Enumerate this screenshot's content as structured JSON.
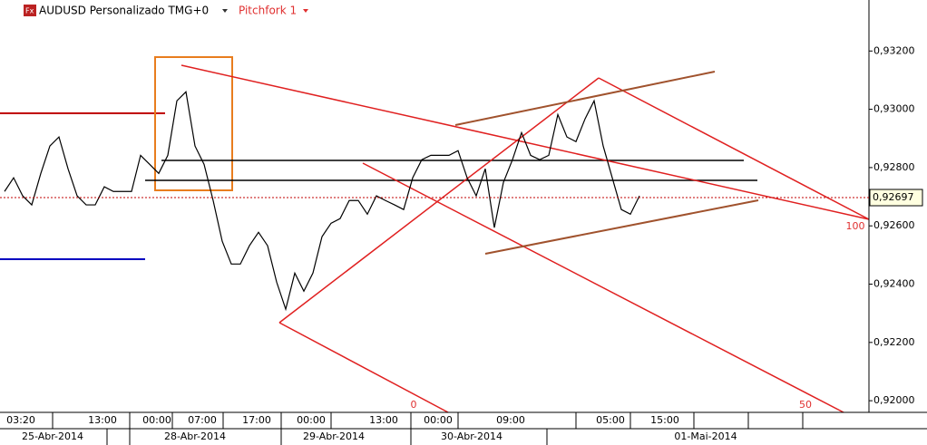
{
  "header": {
    "symbol": "AUDUSD Personalizado TMG+0",
    "tool": "Pitchfork 1"
  },
  "chart_data": {
    "type": "line",
    "categories": [
      "03:20",
      null,
      null,
      null,
      null,
      null,
      null,
      null,
      null,
      "13:00",
      null,
      null,
      null,
      null,
      null,
      "00:00",
      null,
      null,
      null,
      null,
      "07:00",
      null,
      null,
      null,
      null,
      null,
      "17:00",
      null,
      null,
      null,
      null,
      null,
      "00:00",
      null,
      null,
      null,
      null,
      null,
      null,
      null,
      "13:00",
      null,
      null,
      null,
      null,
      null,
      "00:00",
      null,
      null,
      null,
      null,
      null,
      null,
      null,
      "09:00",
      null,
      null,
      null,
      null,
      null,
      null,
      null,
      null,
      null,
      null,
      "05:00",
      null,
      null,
      null,
      null,
      null,
      "15:00"
    ],
    "date_labels": [
      "25-Abr-2014",
      "28-Abr-2014",
      "29-Abr-2014",
      "30-Abr-2014",
      "01-Mai-2014"
    ],
    "series": [
      {
        "name": "AUDUSD",
        "color": "#000000",
        "values": [
          0.92718,
          0.92765,
          0.92703,
          0.92672,
          0.9278,
          0.92874,
          0.92905,
          0.92796,
          0.92703,
          0.92672,
          0.92672,
          0.92734,
          0.92718,
          0.92718,
          0.92718,
          0.92842,
          0.92811,
          0.9278,
          0.92842,
          0.93029,
          0.9306,
          0.92874,
          0.92811,
          0.92687,
          0.92547,
          0.92469,
          0.92469,
          0.92532,
          0.92578,
          0.92532,
          0.92407,
          0.92314,
          0.92438,
          0.92376,
          0.92438,
          0.92563,
          0.92609,
          0.92625,
          0.92687,
          0.92687,
          0.9264,
          0.92703,
          0.92687,
          0.92672,
          0.92656,
          0.92765,
          0.92827,
          0.92842,
          0.92842,
          0.92842,
          0.92858,
          0.92765,
          0.92703,
          0.92796,
          0.92594,
          0.92749,
          0.92827,
          0.9292,
          0.92842,
          0.92827,
          0.92842,
          0.92982,
          0.92905,
          0.92889,
          0.92967,
          0.93029,
          0.92874,
          0.92765,
          0.92656,
          0.9264,
          0.92703,
          null
        ]
      }
    ],
    "current_price": {
      "value": 0.92697,
      "label": "0,92697"
    },
    "ylim": [
      0.9196,
      0.93375
    ],
    "yticks": [
      {
        "value": 0.92,
        "label": "0,92000"
      },
      {
        "value": 0.922,
        "label": "0,92200"
      },
      {
        "value": 0.924,
        "label": "0,92400"
      },
      {
        "value": 0.926,
        "label": "0,92600"
      },
      {
        "value": 0.928,
        "label": "0,92800"
      },
      {
        "value": 0.93,
        "label": "0,93000"
      },
      {
        "value": 0.932,
        "label": "0,93200"
      }
    ],
    "pitchfork_levels": [
      0,
      50,
      100
    ]
  }
}
